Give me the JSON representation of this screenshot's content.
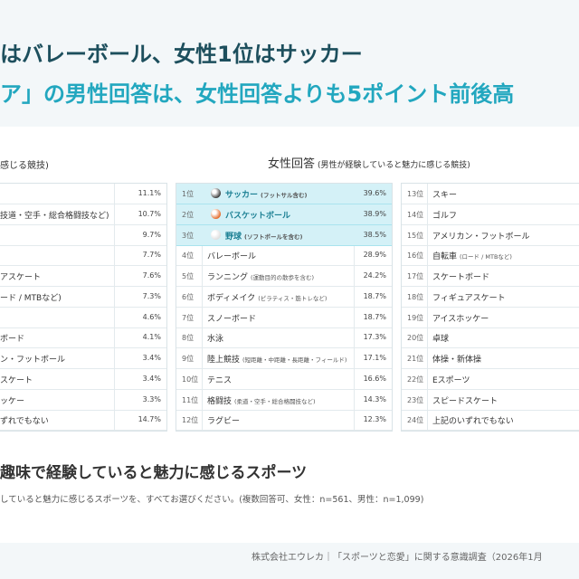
{
  "header": {
    "line1": "はバレーボール、女性1位はサッカー",
    "line2": "ア」の男性回答は、女性回答よりも5ポイント前後高"
  },
  "male_panel": {
    "title": "感じる競技)",
    "rows": [
      {
        "value": "11.1%"
      },
      {
        "label": "技道・空手・総合格闘技など)",
        "value": "10.7%"
      },
      {
        "value": "9.7%"
      },
      {
        "value": "7.7%"
      },
      {
        "label": "アスケート",
        "value": "7.6%"
      },
      {
        "label": "ード / MTBなど)",
        "value": "7.3%"
      },
      {
        "value": "4.6%"
      },
      {
        "label": "ボード",
        "value": "4.1%"
      },
      {
        "label": "ン・フットボール",
        "value": "3.4%"
      },
      {
        "label": "スケート",
        "value": "3.4%"
      },
      {
        "label": "ッケー",
        "value": "3.3%"
      },
      {
        "label": "ずれでもない",
        "value": "14.7%"
      }
    ]
  },
  "female_panel": {
    "title": "女性回答",
    "subtitle": "(男性が経験していると魅力に感じる競技)",
    "rows": [
      {
        "rank": "1位",
        "name": "サッカー",
        "note": "(フットサル含む)",
        "value": "39.6%"
      },
      {
        "rank": "2位",
        "name": "バスケットボール",
        "value": "38.9%"
      },
      {
        "rank": "3位",
        "name": "野球",
        "note": "(ソフトボールを含む)",
        "value": "38.5%"
      },
      {
        "rank": "4位",
        "name": "バレーボール",
        "value": "28.9%"
      },
      {
        "rank": "5位",
        "name": "ランニング",
        "note": "(運動目的の散歩を含む)",
        "value": "24.2%"
      },
      {
        "rank": "6位",
        "name": "ボディメイク",
        "note": "(ピラティス・筋トレなど)",
        "value": "18.7%"
      },
      {
        "rank": "7位",
        "name": "スノーボード",
        "value": "18.7%"
      },
      {
        "rank": "8位",
        "name": "水泳",
        "value": "17.3%"
      },
      {
        "rank": "9位",
        "name": "陸上競技",
        "note": "(短距離・中距離・長距離・フィールド)",
        "value": "17.1%"
      },
      {
        "rank": "10位",
        "name": "テニス",
        "value": "16.6%"
      },
      {
        "rank": "11位",
        "name": "格闘技",
        "note": "(柔道・空手・総合格闘技など)",
        "value": "14.3%"
      },
      {
        "rank": "12位",
        "name": "ラグビー",
        "value": "12.3%"
      }
    ],
    "rows_continued": [
      {
        "rank": "13位",
        "name": "スキー"
      },
      {
        "rank": "14位",
        "name": "ゴルフ"
      },
      {
        "rank": "15位",
        "name": "アメリカン・フットボール"
      },
      {
        "rank": "16位",
        "name": "自転車",
        "note": "(ロード / MTBなど)"
      },
      {
        "rank": "17位",
        "name": "スケートボード"
      },
      {
        "rank": "18位",
        "name": "フィギュアスケート"
      },
      {
        "rank": "19位",
        "name": "アイスホッケー"
      },
      {
        "rank": "20位",
        "name": "卓球"
      },
      {
        "rank": "21位",
        "name": "体操・新体操"
      },
      {
        "rank": "22位",
        "name": "Eスポーツ"
      },
      {
        "rank": "23位",
        "name": "スピードスケート"
      },
      {
        "rank": "24位",
        "name": "上記のいずれでもない"
      }
    ]
  },
  "section": {
    "title": "趣味で経験していると魅力に感じるスポーツ",
    "question": "していると魅力に感じるスポーツを、すべてお選びください。(複数回答可、女性：n=561、男性：n=1,099)"
  },
  "footer": "株式会社エウレカ｜「スポーツと恋愛」に関する意識調査（2026年1月"
}
